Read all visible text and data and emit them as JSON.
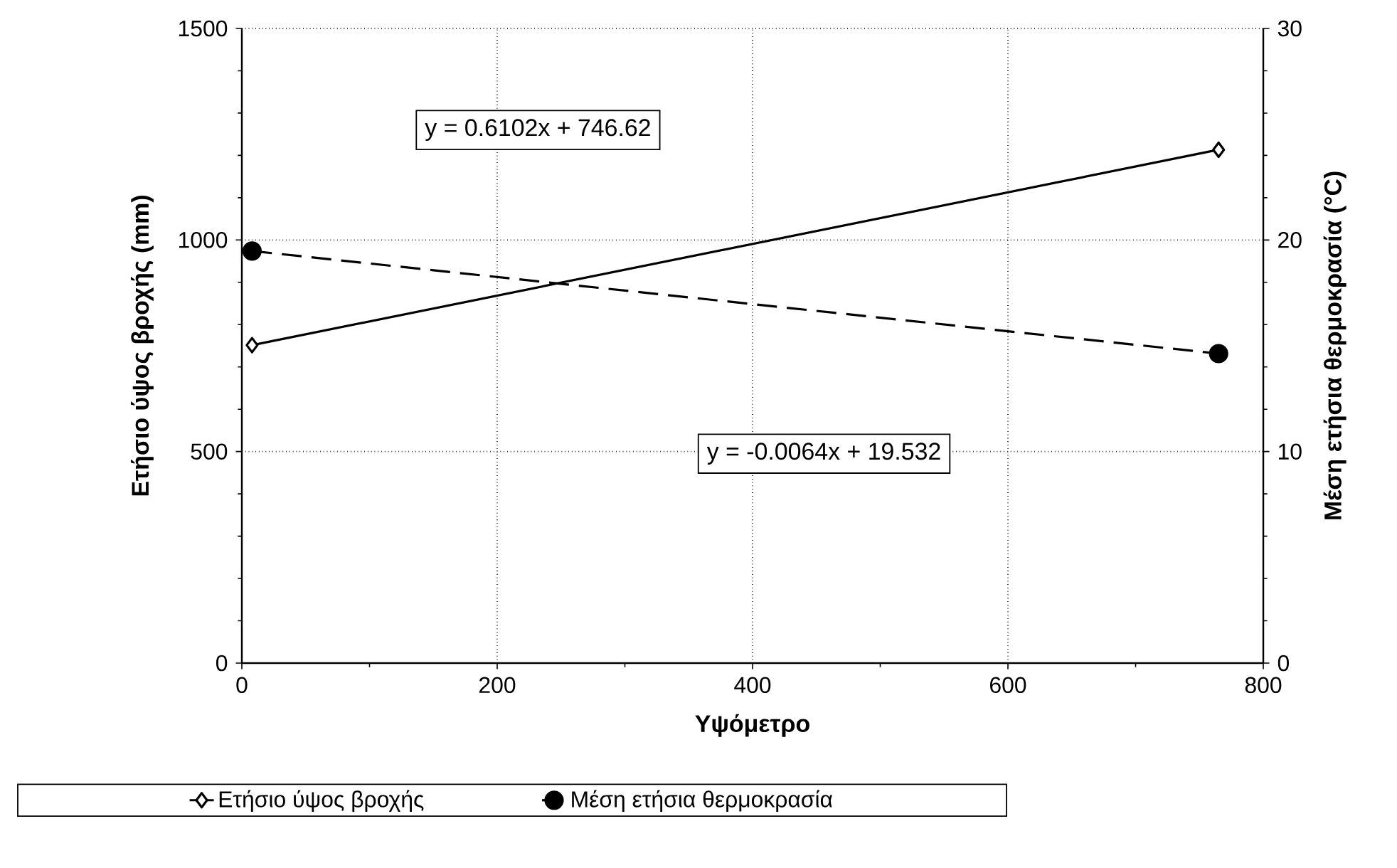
{
  "chart_data": {
    "type": "line",
    "xlabel": "Υψόμετρο",
    "ylabel": "Ετήσιο ύψος βροχής (mm)",
    "y2label": "Μέση ετήσια θερμοκρασία (°C)",
    "x": [
      8,
      765
    ],
    "series": [
      {
        "name": "Ετήσιο ύψος βροχής",
        "color": "#000000",
        "values": [
          751.5,
          1213.4
        ],
        "marker": "diamond",
        "line_style": "solid",
        "axis": "y"
      },
      {
        "name": "Μέση ετήσια θερμοκρασία",
        "color": "#000000",
        "values": [
          19.48,
          14.63
        ],
        "marker": "circle",
        "line_style": "dashed",
        "axis": "y2"
      }
    ],
    "xlim": [
      0,
      800
    ],
    "xticks": [
      0,
      200,
      400,
      600,
      800
    ],
    "ylim": [
      0,
      1500
    ],
    "yticks": [
      0,
      500,
      1000,
      1500
    ],
    "y2lim": [
      0,
      30
    ],
    "y2ticks": [
      0,
      10,
      20,
      30
    ],
    "annotations": [
      "y = 0.6102x + 746.62",
      "y = -0.0064x + 19.532"
    ],
    "grid": true,
    "legend": "bottom"
  }
}
